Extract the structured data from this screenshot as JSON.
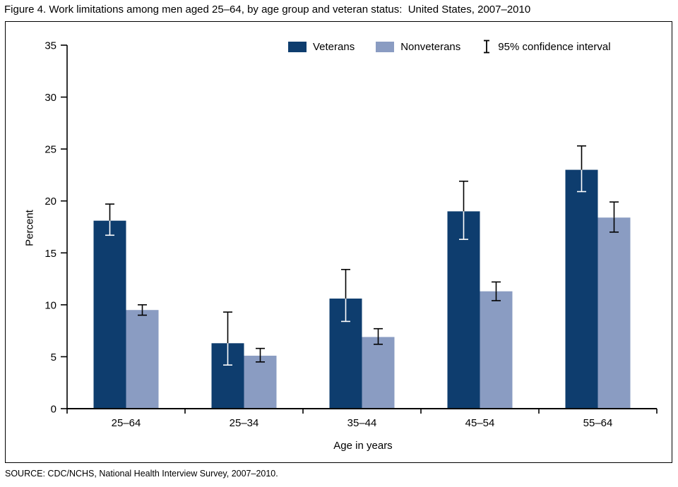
{
  "title": "Figure 4. Work limitations among men aged 25–64, by age group and veteran status:  United States, 2007–2010",
  "source": "SOURCE: CDC/NCHS, National Health Interview Survey, 2007–2010.",
  "legend": {
    "veterans": "Veterans",
    "nonveterans": "Nonveterans",
    "ci": "95% confidence interval"
  },
  "chart_data": {
    "type": "bar",
    "title": "Work limitations among men aged 25–64, by age group and veteran status: United States, 2007–2010",
    "categories": [
      "25–64",
      "25–34",
      "35–44",
      "45–54",
      "55–64"
    ],
    "series": [
      {
        "name": "Veterans",
        "color": "#0e3d6e",
        "values": [
          18.1,
          6.3,
          10.6,
          19.0,
          23.0
        ],
        "ci_low": [
          16.7,
          4.2,
          8.4,
          16.3,
          20.9
        ],
        "ci_high": [
          19.7,
          9.3,
          13.4,
          21.9,
          25.3
        ]
      },
      {
        "name": "Nonveterans",
        "color": "#8a9cc2",
        "values": [
          9.5,
          5.1,
          6.9,
          11.3,
          18.4
        ],
        "ci_low": [
          9.0,
          4.5,
          6.2,
          10.4,
          17.0
        ],
        "ci_high": [
          10.0,
          5.8,
          7.7,
          12.2,
          19.9
        ]
      }
    ],
    "xlabel": "Age in years",
    "ylabel": "Percent",
    "ylim": [
      0,
      35
    ],
    "yticks": [
      0,
      5,
      10,
      15,
      20,
      25,
      30,
      35
    ],
    "legend_position": "top",
    "grid": false,
    "error_bars": "95% confidence interval"
  }
}
